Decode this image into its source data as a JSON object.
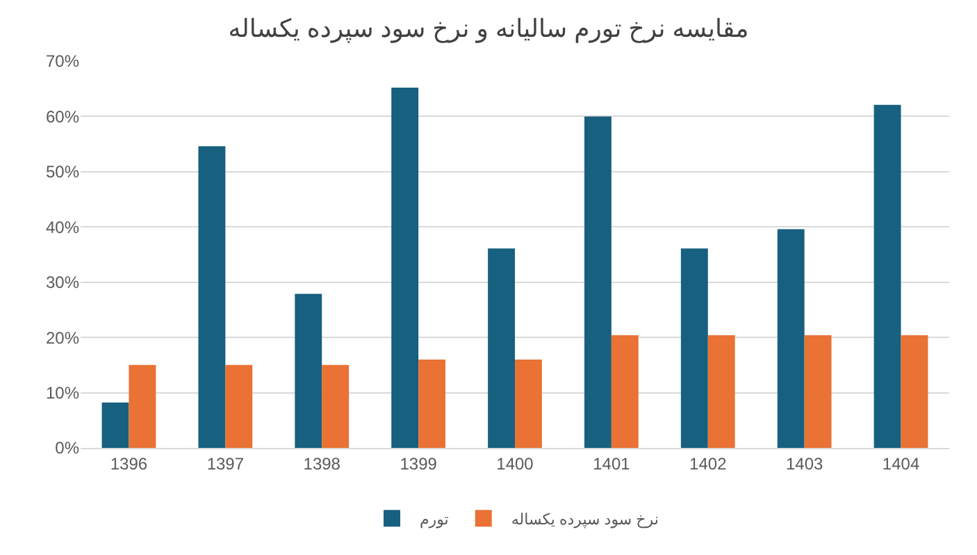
{
  "chart_data": {
    "type": "bar",
    "title": "مقایسه نرخ تورم سالیانه و نرخ سود سپرده یکساله",
    "categories": [
      "1396",
      "1397",
      "1398",
      "1399",
      "1400",
      "1401",
      "1402",
      "1403",
      "1404"
    ],
    "series": [
      {
        "name": "تورم",
        "color": "#17607f",
        "values": [
          8.2,
          54.6,
          27.9,
          65.2,
          36.1,
          60.0,
          36.1,
          39.6,
          62.1
        ]
      },
      {
        "name": "نرخ سود سپرده یکساله",
        "color": "#e97234",
        "values": [
          15.0,
          15.0,
          15.0,
          16.0,
          16.0,
          20.4,
          20.4,
          20.4,
          20.4
        ]
      }
    ],
    "ylim": [
      0,
      70
    ],
    "yticks": [
      {
        "value": 0,
        "label": "0%"
      },
      {
        "value": 10,
        "label": "10%"
      },
      {
        "value": 20,
        "label": "20%"
      },
      {
        "value": 30,
        "label": "30%"
      },
      {
        "value": 40,
        "label": "40%"
      },
      {
        "value": 50,
        "label": "50%"
      },
      {
        "value": 60,
        "label": "60%"
      },
      {
        "value": 70,
        "label": "70%"
      }
    ],
    "grid": "y",
    "legend": "bottom"
  }
}
